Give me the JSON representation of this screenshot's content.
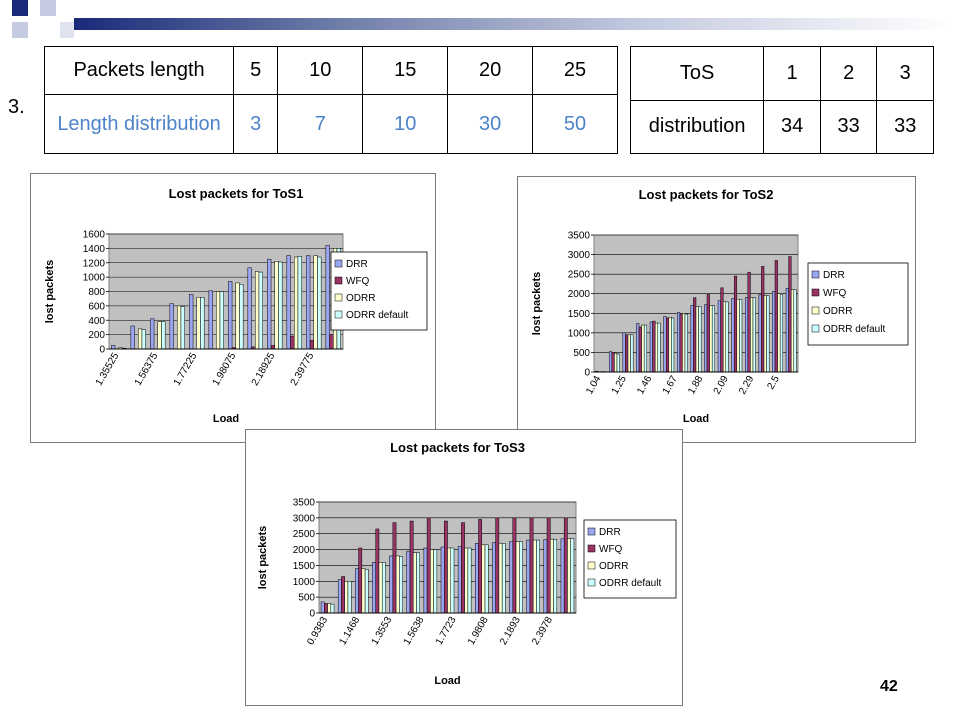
{
  "slide": {
    "item_number": "3.",
    "page_number": "42"
  },
  "table_packets": {
    "header": [
      "Packets length",
      "5",
      "10",
      "15",
      "20",
      "25"
    ],
    "row": [
      "Length distribution",
      "3",
      "7",
      "10",
      "30",
      "50"
    ]
  },
  "table_tos": {
    "header": [
      "ToS",
      "1",
      "2",
      "3"
    ],
    "row": [
      "distribution",
      "34",
      "33",
      "33"
    ]
  },
  "colors": {
    "DRR": "#9aa6f2",
    "WFQ": "#993366",
    "ODRR": "#ffffcc",
    "ODRR default": "#ccffff",
    "plot_bg": "#c0c0c0",
    "accent_bar": "#1a2a7a"
  },
  "chart_data": [
    {
      "type": "bar",
      "title": "Lost packets for ToS1",
      "xlabel": "Load",
      "ylabel": "lost packets",
      "ylim": [
        0,
        1600
      ],
      "yticks": [
        0,
        200,
        400,
        600,
        800,
        1000,
        1200,
        1400,
        1600
      ],
      "xtick_labels": [
        "1.35525",
        "1.56375",
        "1.77225",
        "1.98075",
        "2.18925",
        "2.39775"
      ],
      "legend_position": "right",
      "series": [
        {
          "name": "DRR",
          "values": [
            50,
            320,
            420,
            630,
            760,
            810,
            940,
            1130,
            1250,
            1300,
            1300,
            1440
          ]
        },
        {
          "name": "WFQ",
          "values": [
            0,
            0,
            0,
            0,
            0,
            0,
            20,
            30,
            50,
            180,
            120,
            200
          ]
        },
        {
          "name": "ODRR",
          "values": [
            20,
            280,
            380,
            600,
            720,
            800,
            920,
            1080,
            1220,
            1280,
            1300,
            1400
          ]
        },
        {
          "name": "ODRR default",
          "values": [
            10,
            270,
            380,
            590,
            720,
            800,
            900,
            1070,
            1210,
            1290,
            1280,
            1400
          ]
        }
      ]
    },
    {
      "type": "bar",
      "title": "Lost packets for ToS2",
      "xlabel": "Load",
      "ylabel": "lost packets",
      "ylim": [
        0,
        3500
      ],
      "yticks": [
        0,
        500,
        1000,
        1500,
        2000,
        2500,
        3000,
        3500
      ],
      "xtick_labels": [
        "1.04",
        "1.25",
        "1.46",
        "1.67",
        "1.88",
        "2.09",
        "2.29",
        "2.5"
      ],
      "legend_position": "right",
      "series": [
        {
          "name": "DRR",
          "values": [
            20,
            520,
            1000,
            1240,
            1280,
            1420,
            1520,
            1700,
            1720,
            1820,
            1880,
            1900,
            1980,
            2060,
            2140
          ]
        },
        {
          "name": "WFQ",
          "values": [
            0,
            500,
            950,
            1150,
            1300,
            1380,
            1480,
            1900,
            1980,
            2150,
            2450,
            2550,
            2700,
            2850,
            2950
          ]
        },
        {
          "name": "ODRR",
          "values": [
            10,
            480,
            950,
            1200,
            1250,
            1400,
            1500,
            1680,
            1700,
            1800,
            1860,
            1900,
            1950,
            2000,
            2100
          ]
        },
        {
          "name": "ODRR default",
          "values": [
            10,
            460,
            950,
            1200,
            1250,
            1380,
            1480,
            1680,
            1700,
            1790,
            1860,
            1900,
            1950,
            1990,
            2100
          ]
        }
      ]
    },
    {
      "type": "bar",
      "title": "Lost packets for ToS3",
      "xlabel": "Load",
      "ylabel": "lost packets",
      "ylim": [
        0,
        3500
      ],
      "yticks": [
        0,
        500,
        1000,
        1500,
        2000,
        2500,
        3000,
        3500
      ],
      "xtick_labels": [
        "0.9383",
        "1.1468",
        "1.3553",
        "1.5638",
        "1.7723",
        "1.9808",
        "2.1893",
        "2.3978"
      ],
      "legend_position": "right",
      "series": [
        {
          "name": "DRR",
          "values": [
            350,
            1050,
            1400,
            1600,
            1800,
            1950,
            2050,
            2080,
            2100,
            2200,
            2220,
            2250,
            2300,
            2320,
            2340
          ]
        },
        {
          "name": "WFQ",
          "values": [
            300,
            1150,
            2050,
            2650,
            2850,
            2900,
            3000,
            2900,
            2850,
            2950,
            3000,
            3000,
            3000,
            3000,
            3000
          ]
        },
        {
          "name": "ODRR",
          "values": [
            300,
            1000,
            1400,
            1600,
            1800,
            1900,
            2000,
            2050,
            2050,
            2150,
            2200,
            2250,
            2300,
            2330,
            2350
          ]
        },
        {
          "name": "ODRR default",
          "values": [
            280,
            1000,
            1380,
            1600,
            1780,
            1900,
            2000,
            2050,
            2050,
            2150,
            2200,
            2250,
            2300,
            2320,
            2350
          ]
        }
      ]
    }
  ]
}
